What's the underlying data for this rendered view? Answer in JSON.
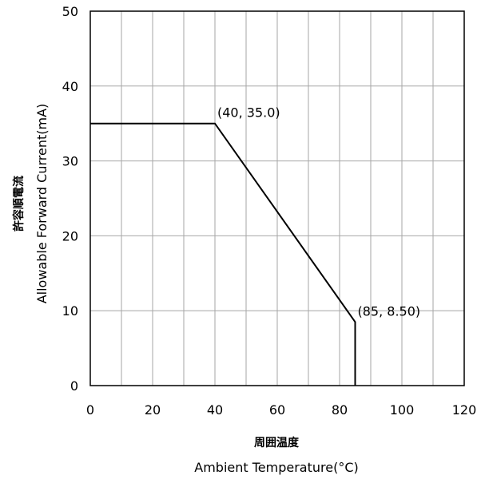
{
  "chart_data": {
    "type": "line",
    "x_axis": {
      "label_jp": "周囲温度",
      "label": "Ambient Temperature(°C)",
      "range": [
        0,
        120
      ],
      "major_ticks": [
        0,
        20,
        40,
        60,
        80,
        100,
        120
      ],
      "minor_gridlines": [
        10,
        30,
        50,
        70,
        90,
        110
      ]
    },
    "y_axis": {
      "label_jp": "許容順電流",
      "label": "Allowable Forward Current(mA)",
      "range": [
        0,
        50
      ],
      "major_ticks": [
        0,
        10,
        20,
        30,
        40,
        50
      ]
    },
    "grid": true,
    "series": [
      {
        "x": [
          0,
          40,
          85,
          85
        ],
        "y": [
          35.0,
          35.0,
          8.5,
          0
        ]
      }
    ],
    "annotations": [
      {
        "text": "(40, 35.0)",
        "x": 40,
        "y": 35.0
      },
      {
        "text": "(85, 8.50)",
        "x": 85,
        "y": 8.5
      }
    ],
    "colors": {
      "line": "#000000",
      "grid": "#a6a6a6",
      "frame": "#000000"
    }
  }
}
